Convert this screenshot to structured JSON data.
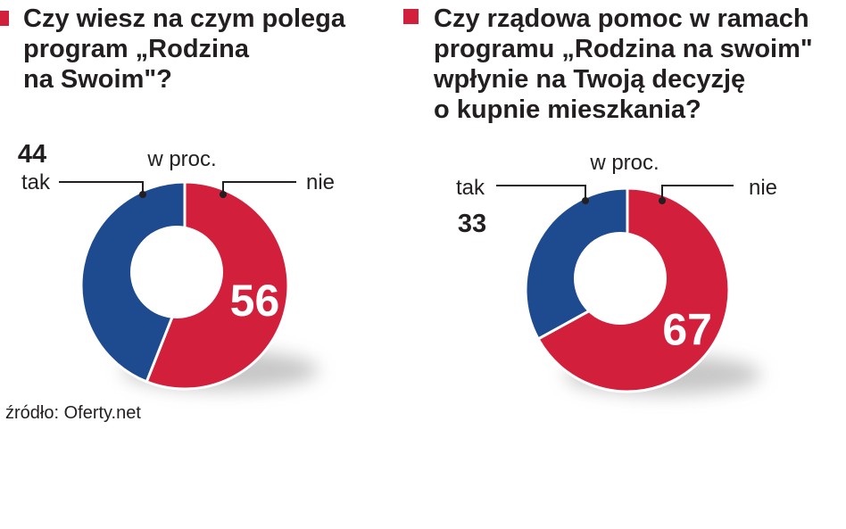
{
  "colors": {
    "tak": "#1e4a8f",
    "nie": "#d21f3c",
    "marker": "#d21f3c",
    "leader": "#231f20",
    "inner_label": "#ffffff"
  },
  "charts": [
    {
      "title_lines": [
        "Czy wiesz na czym polega",
        "program „Rodzina",
        "na Swoim\"?"
      ],
      "unit": "w proc."
    },
    {
      "title_lines": [
        "Czy rządowa pomoc w ramach",
        "programu „Rodzina na swoim\"",
        "wpłynie na Twoją decyzję",
        "o kupnie mieszkania?"
      ],
      "unit": "w proc."
    }
  ],
  "chart_data": [
    {
      "type": "pie",
      "title": "Czy wiesz na czym polega program „Rodzina na Swoim\"?",
      "unit": "w proc.",
      "slices": [
        {
          "label": "tak",
          "value": 44,
          "value_label": "44"
        },
        {
          "label": "nie",
          "value": 56,
          "value_label": "56"
        }
      ]
    },
    {
      "type": "pie",
      "title": "Czy rządowa pomoc w ramach programu „Rodzina na swoim\" wpłynie na Twoją decyzję o kupnie mieszkania?",
      "unit": "w proc.",
      "slices": [
        {
          "label": "tak",
          "value": 33,
          "value_label": "33"
        },
        {
          "label": "nie",
          "value": 67,
          "value_label": "67"
        }
      ]
    }
  ],
  "source": "źródło: Oferty.net"
}
